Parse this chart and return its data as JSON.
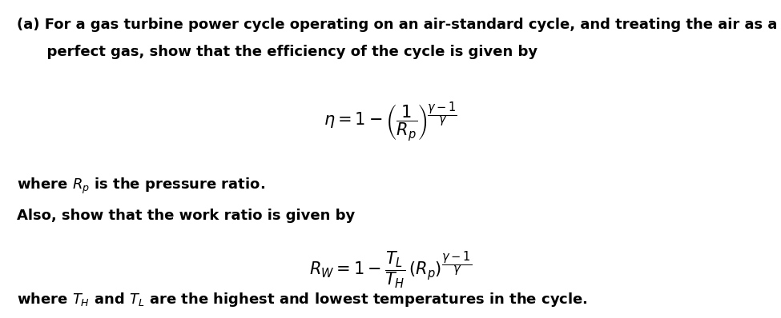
{
  "bg_color": "#ffffff",
  "text_color": "#000000",
  "fig_width": 9.75,
  "fig_height": 3.98,
  "dpi": 100,
  "line1": "(a) For a gas turbine power cycle operating on an air-standard cycle, and treating the air as a",
  "line2": "      perfect gas, show that the efficiency of the cycle is given by",
  "eq1": "$\\eta = 1 - \\left(\\dfrac{1}{R_p}\\right)^{\\!\\dfrac{\\gamma-1}{\\gamma}}$",
  "line3": "where $R_p$ is the pressure ratio.",
  "line4": "Also, show that the work ratio is given by",
  "eq2": "$R_W = 1 - \\dfrac{T_L}{T_H}\\,(R_p)^{\\dfrac{\\gamma-1}{\\gamma}}$",
  "line5": "where $T_H$ and $T_L$ are the highest and lowest temperatures in the cycle.",
  "font_size_text": 13.0,
  "font_size_eq": 15,
  "font_weight": "bold"
}
